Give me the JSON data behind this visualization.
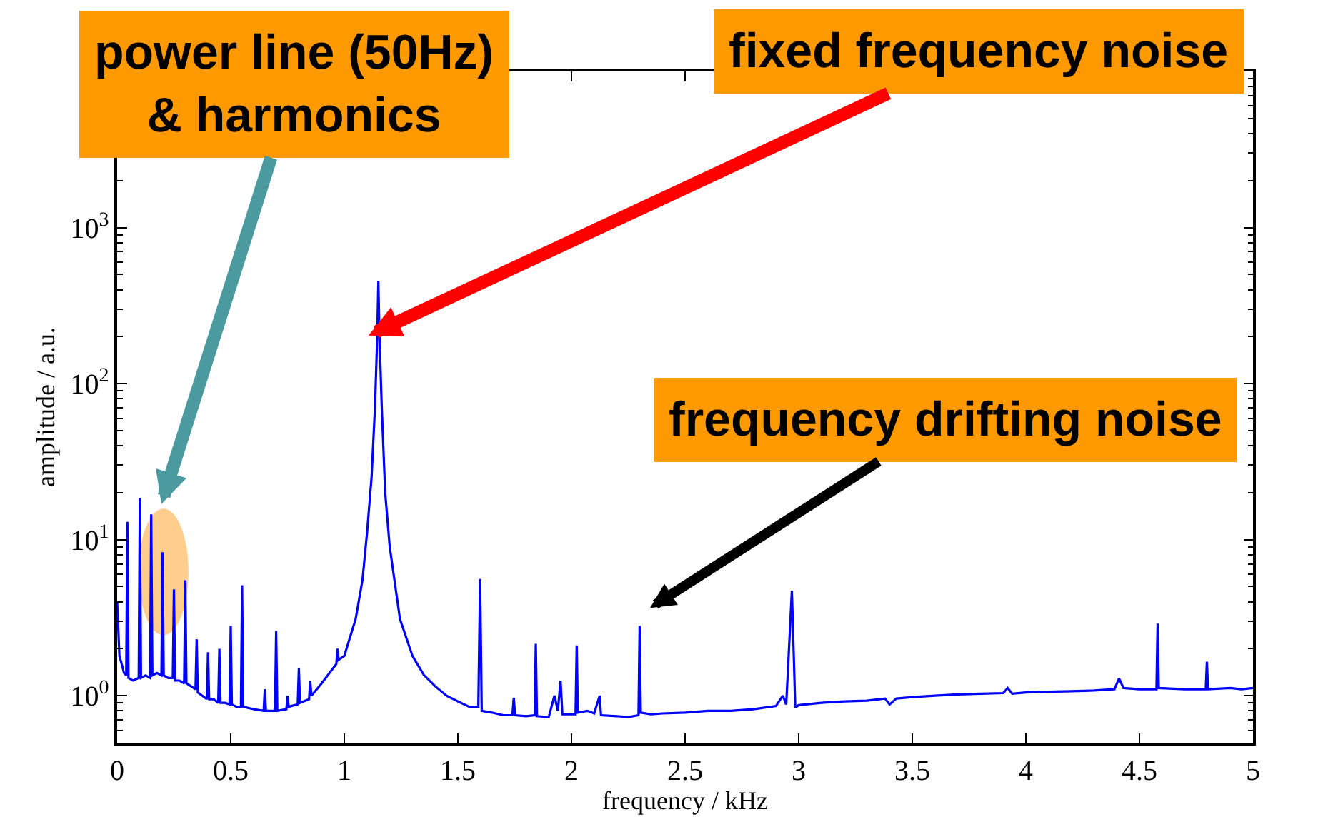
{
  "chart_data": {
    "type": "line",
    "xlabel": "frequency / kHz",
    "ylabel": "amplitude / a.u.",
    "log": "y",
    "xlim": [
      0,
      5
    ],
    "xticks": [
      0,
      0.5,
      1,
      1.5,
      2,
      2.5,
      3,
      3.5,
      4,
      4.5,
      5
    ],
    "ylim": [
      0.5,
      10000
    ],
    "yticks": [
      {
        "value": 1,
        "label": "10$^{0}$"
      },
      {
        "value": 10,
        "label": "10$^{1}$"
      },
      {
        "value": 100,
        "label": "10$^{2}$"
      },
      {
        "value": 1000,
        "label": "10$^{3}$"
      }
    ],
    "grid": false,
    "marker": "none",
    "line_style": "solid",
    "annotations": [
      "power line (50Hz)\n& harmonics",
      "fixed frequency noise",
      "frequency drifting noise"
    ],
    "series": [
      {
        "color": "#0000ff",
        "x": [
          0,
          0.01,
          0.02,
          0.03,
          0.04,
          0.045,
          0.05,
          0.07,
          0.095,
          0.1,
          0.105,
          0.125,
          0.145,
          0.15,
          0.155,
          0.175,
          0.195,
          0.2,
          0.205,
          0.225,
          0.245,
          0.25,
          0.255,
          0.275,
          0.295,
          0.3,
          0.305,
          0.325,
          0.345,
          0.35,
          0.355,
          0.375,
          0.395,
          0.4,
          0.405,
          0.425,
          0.445,
          0.45,
          0.455,
          0.475,
          0.495,
          0.5,
          0.505,
          0.525,
          0.545,
          0.55,
          0.555,
          0.6,
          0.645,
          0.65,
          0.655,
          0.675,
          0.695,
          0.7,
          0.705,
          0.745,
          0.75,
          0.755,
          0.795,
          0.8,
          0.805,
          0.845,
          0.85,
          0.855,
          0.9,
          0.965,
          0.97,
          0.975,
          1.0,
          1.05,
          1.08,
          1.1,
          1.12,
          1.135,
          1.145,
          1.15,
          1.155,
          1.165,
          1.18,
          1.2,
          1.245,
          1.3,
          1.35,
          1.4,
          1.45,
          1.5,
          1.55,
          1.59,
          1.598,
          1.605,
          1.65,
          1.7,
          1.74,
          1.746,
          1.752,
          1.8,
          1.838,
          1.843,
          1.848,
          1.9,
          1.925,
          1.94,
          1.952,
          1.96,
          2.0,
          2.018,
          2.023,
          2.028,
          2.07,
          2.1,
          2.124,
          2.13,
          2.2,
          2.25,
          2.295,
          2.3,
          2.305,
          2.35,
          2.4,
          2.5,
          2.6,
          2.7,
          2.8,
          2.9,
          2.93,
          2.945,
          2.97,
          2.985,
          3.0,
          3.1,
          3.2,
          3.3,
          3.38,
          3.4,
          3.43,
          3.5,
          3.6,
          3.7,
          3.8,
          3.9,
          3.92,
          3.94,
          4.0,
          4.1,
          4.2,
          4.3,
          4.39,
          4.41,
          4.43,
          4.5,
          4.575,
          4.58,
          4.585,
          4.7,
          4.792,
          4.797,
          4.802,
          4.9,
          4.95,
          5.0
        ],
        "values": [
          4.0,
          1.8,
          1.6,
          1.4,
          1.35,
          13,
          1.3,
          1.25,
          1.3,
          18.5,
          1.3,
          1.35,
          1.3,
          14.5,
          1.35,
          1.4,
          1.35,
          8.3,
          1.35,
          1.3,
          1.3,
          4.8,
          1.25,
          1.25,
          1.2,
          5.5,
          1.2,
          1.15,
          1.1,
          2.3,
          1.05,
          1.0,
          0.95,
          1.9,
          0.95,
          0.95,
          0.9,
          2.0,
          0.9,
          0.9,
          0.88,
          2.8,
          0.88,
          0.85,
          0.85,
          5.1,
          0.85,
          0.82,
          0.8,
          1.1,
          0.8,
          0.8,
          0.8,
          2.6,
          0.8,
          0.82,
          1.0,
          0.85,
          0.88,
          1.5,
          0.9,
          0.95,
          1.25,
          1.0,
          1.2,
          1.6,
          2.0,
          1.7,
          1.8,
          3.1,
          5.5,
          11,
          25,
          70,
          200,
          455,
          200,
          70,
          20,
          9,
          3.1,
          1.8,
          1.36,
          1.15,
          1.0,
          0.92,
          0.85,
          0.85,
          5.6,
          0.8,
          0.78,
          0.75,
          0.75,
          0.97,
          0.75,
          0.74,
          0.75,
          2.15,
          0.74,
          0.73,
          1.0,
          0.8,
          1.25,
          0.76,
          0.76,
          0.76,
          2.1,
          0.78,
          0.8,
          0.77,
          1.0,
          0.75,
          0.74,
          0.73,
          0.75,
          2.8,
          0.78,
          0.76,
          0.77,
          0.78,
          0.8,
          0.8,
          0.82,
          0.86,
          1.0,
          0.88,
          4.7,
          0.84,
          0.87,
          0.9,
          0.92,
          0.93,
          0.96,
          0.88,
          0.96,
          0.98,
          1.0,
          1.02,
          1.03,
          1.04,
          1.12,
          1.03,
          1.05,
          1.06,
          1.07,
          1.08,
          1.1,
          1.29,
          1.12,
          1.1,
          1.1,
          2.9,
          1.12,
          1.1,
          1.1,
          1.65,
          1.1,
          1.12,
          1.1,
          1.12
        ]
      }
    ]
  }
}
